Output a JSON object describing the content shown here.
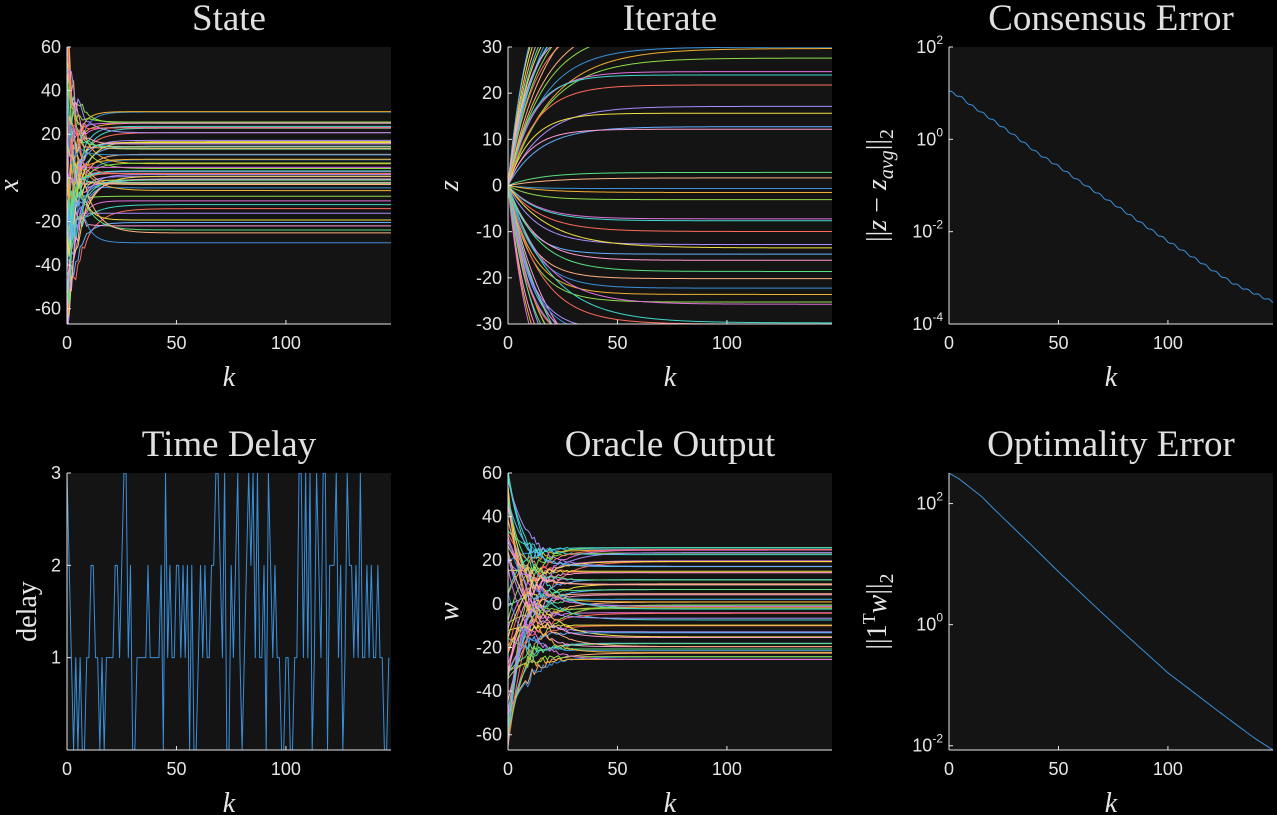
{
  "chart_data": [
    {
      "id": "state",
      "type": "line",
      "title": "State",
      "xlabel": "k",
      "ylabel": "x",
      "xlim": [
        0,
        148
      ],
      "ylim": [
        -67,
        60
      ],
      "xticks": [
        0,
        50,
        100
      ],
      "yticks": [
        60,
        40,
        20,
        0,
        -20,
        -40,
        -60
      ],
      "ytick_labels": [
        "60",
        "40",
        "20",
        "0",
        "-20",
        "-40",
        "-60"
      ],
      "n_series": 60,
      "steady_values": [
        30,
        25.5,
        24.5,
        23.5,
        22.5,
        21,
        17,
        16,
        15,
        14,
        13,
        11,
        8.5,
        6.5,
        4.5,
        3,
        2,
        1.5,
        0.5,
        -0.5,
        -1,
        -1.5,
        -2.5,
        -3,
        -5,
        -6,
        -9,
        -10,
        -12,
        -14,
        -16,
        -19,
        -20.5,
        -22,
        -24,
        -25,
        -30
      ]
    },
    {
      "id": "iterate",
      "type": "line",
      "title": "Iterate",
      "xlabel": "k",
      "ylabel": "z",
      "xlim": [
        0,
        148
      ],
      "ylim": [
        -30,
        30
      ],
      "xticks": [
        0,
        50,
        100
      ],
      "yticks": [
        30,
        20,
        10,
        0,
        -10,
        -20,
        -30
      ],
      "ytick_labels": [
        "30",
        "20",
        "10",
        "0",
        "-10",
        "-20",
        "-30"
      ],
      "start_value": 0,
      "steady_values": [
        30,
        29.5,
        28,
        25,
        24,
        21.5,
        17,
        16,
        13,
        12.5,
        2.5,
        2,
        -0.5,
        -1.5,
        -3,
        -7.5,
        -8,
        -10,
        -12.5,
        -13.5,
        -15,
        -16,
        -19,
        -20,
        -22,
        -23.5,
        -25,
        -26,
        -29.5,
        -30
      ]
    },
    {
      "id": "consensus-error",
      "type": "line",
      "title": "Consensus Error",
      "xlabel": "k",
      "ylabel": "||z − z_avg||_2",
      "yscale": "log",
      "xlim": [
        0,
        148
      ],
      "ylim": [
        0.0001,
        100
      ],
      "xticks": [
        0,
        50,
        100
      ],
      "yticks": [
        100,
        1,
        0.01,
        0.0001
      ],
      "ytick_base": [
        "10",
        "10",
        "10",
        "10"
      ],
      "ytick_exp": [
        "2",
        "0",
        "-2",
        "-4"
      ],
      "x": [
        0,
        5,
        10,
        20,
        30,
        40,
        50,
        60,
        70,
        80,
        90,
        100,
        110,
        120,
        130,
        140,
        148
      ],
      "y": [
        11,
        8.5,
        5.5,
        2.6,
        1.2,
        0.52,
        0.26,
        0.12,
        0.058,
        0.028,
        0.013,
        0.0062,
        0.0031,
        0.0015,
        0.00075,
        0.00045,
        0.0003
      ]
    },
    {
      "id": "time-delay",
      "type": "line",
      "title": "Time Delay",
      "xlabel": "k",
      "ylabel": "delay",
      "xlim": [
        0,
        148
      ],
      "ylim": [
        0,
        3
      ],
      "xticks": [
        0,
        50,
        100
      ],
      "yticks": [
        3,
        2,
        1
      ],
      "ytick_labels": [
        "3",
        "2",
        "1"
      ],
      "values": [
        3,
        2,
        1,
        0,
        1,
        0,
        1,
        0,
        0,
        1,
        1,
        2,
        2,
        1,
        1,
        0,
        1,
        0,
        1,
        1,
        1,
        1,
        2,
        2,
        1,
        2,
        3,
        3,
        1,
        2,
        0,
        0,
        1,
        1,
        1,
        1,
        1,
        2,
        1,
        1,
        1,
        1,
        1,
        2,
        0,
        3,
        1,
        2,
        1,
        1,
        2,
        2,
        1,
        2,
        1,
        2,
        0,
        2,
        0,
        0,
        1,
        2,
        1,
        2,
        1,
        1,
        2,
        2,
        3,
        3,
        2,
        1,
        3,
        0,
        0,
        2,
        1,
        2,
        3,
        1,
        0,
        1,
        2,
        3,
        2,
        3,
        1,
        3,
        1,
        1,
        2,
        0,
        3,
        2,
        1,
        2,
        1,
        1,
        0,
        0,
        1,
        1,
        0,
        0,
        1,
        1,
        3,
        3,
        1,
        3,
        1,
        3,
        0,
        1,
        3,
        2,
        1,
        3,
        3,
        0,
        2,
        2,
        2,
        3,
        1,
        2,
        0,
        1,
        3,
        2,
        2,
        1,
        2,
        1,
        3,
        1,
        1,
        2,
        1,
        2,
        1,
        1,
        2,
        1,
        1,
        0,
        0,
        1
      ]
    },
    {
      "id": "oracle-output",
      "type": "line",
      "title": "Oracle Output",
      "xlabel": "k",
      "ylabel": "w",
      "xlim": [
        0,
        148
      ],
      "ylim": [
        -67,
        60
      ],
      "xticks": [
        0,
        50,
        100
      ],
      "yticks": [
        60,
        40,
        20,
        0,
        -20,
        -40,
        -60
      ],
      "ytick_labels": [
        "60",
        "40",
        "20",
        "0",
        "-20",
        "-40",
        "-60"
      ],
      "steady_values": [
        25.5,
        24.5,
        23,
        19.5,
        17,
        14.5,
        11,
        9,
        7,
        4.5,
        2,
        0.5,
        -0.5,
        -1.5,
        -2.5,
        -4,
        -7,
        -10,
        -13,
        -15,
        -18,
        -19.5,
        -21,
        -22.5,
        -24,
        -25.5
      ]
    },
    {
      "id": "optimality-error",
      "type": "line",
      "title": "Optimality Error",
      "xlabel": "k",
      "ylabel": "||1ᵀw||_2",
      "yscale": "log",
      "xlim": [
        0,
        148
      ],
      "ylim": [
        0.0085,
        320
      ],
      "xticks": [
        0,
        50,
        100
      ],
      "yticks": [
        100,
        1,
        0.01
      ],
      "ytick_base": [
        "10",
        "10",
        "10"
      ],
      "ytick_exp": [
        "2",
        "0",
        "-2"
      ],
      "x": [
        0,
        5,
        10,
        15,
        20,
        30,
        40,
        50,
        60,
        70,
        80,
        90,
        100,
        110,
        120,
        130,
        140,
        148
      ],
      "y": [
        320,
        250,
        180,
        130,
        85,
        38,
        17,
        7.5,
        3.4,
        1.55,
        0.72,
        0.34,
        0.16,
        0.085,
        0.045,
        0.024,
        0.013,
        0.0085
      ]
    }
  ],
  "colors": {
    "background": "#000000",
    "plot_background": "#141414",
    "axis": "#e6e6e6",
    "line": "#3a8fd8",
    "palette": [
      "#3a8fd8",
      "#f0b030",
      "#8cdc4a",
      "#e070e0",
      "#40d8c8",
      "#ff6a5a",
      "#a98cff",
      "#f0e040",
      "#60b0ff",
      "#ff9ad0",
      "#5ae080",
      "#ffb080"
    ]
  }
}
